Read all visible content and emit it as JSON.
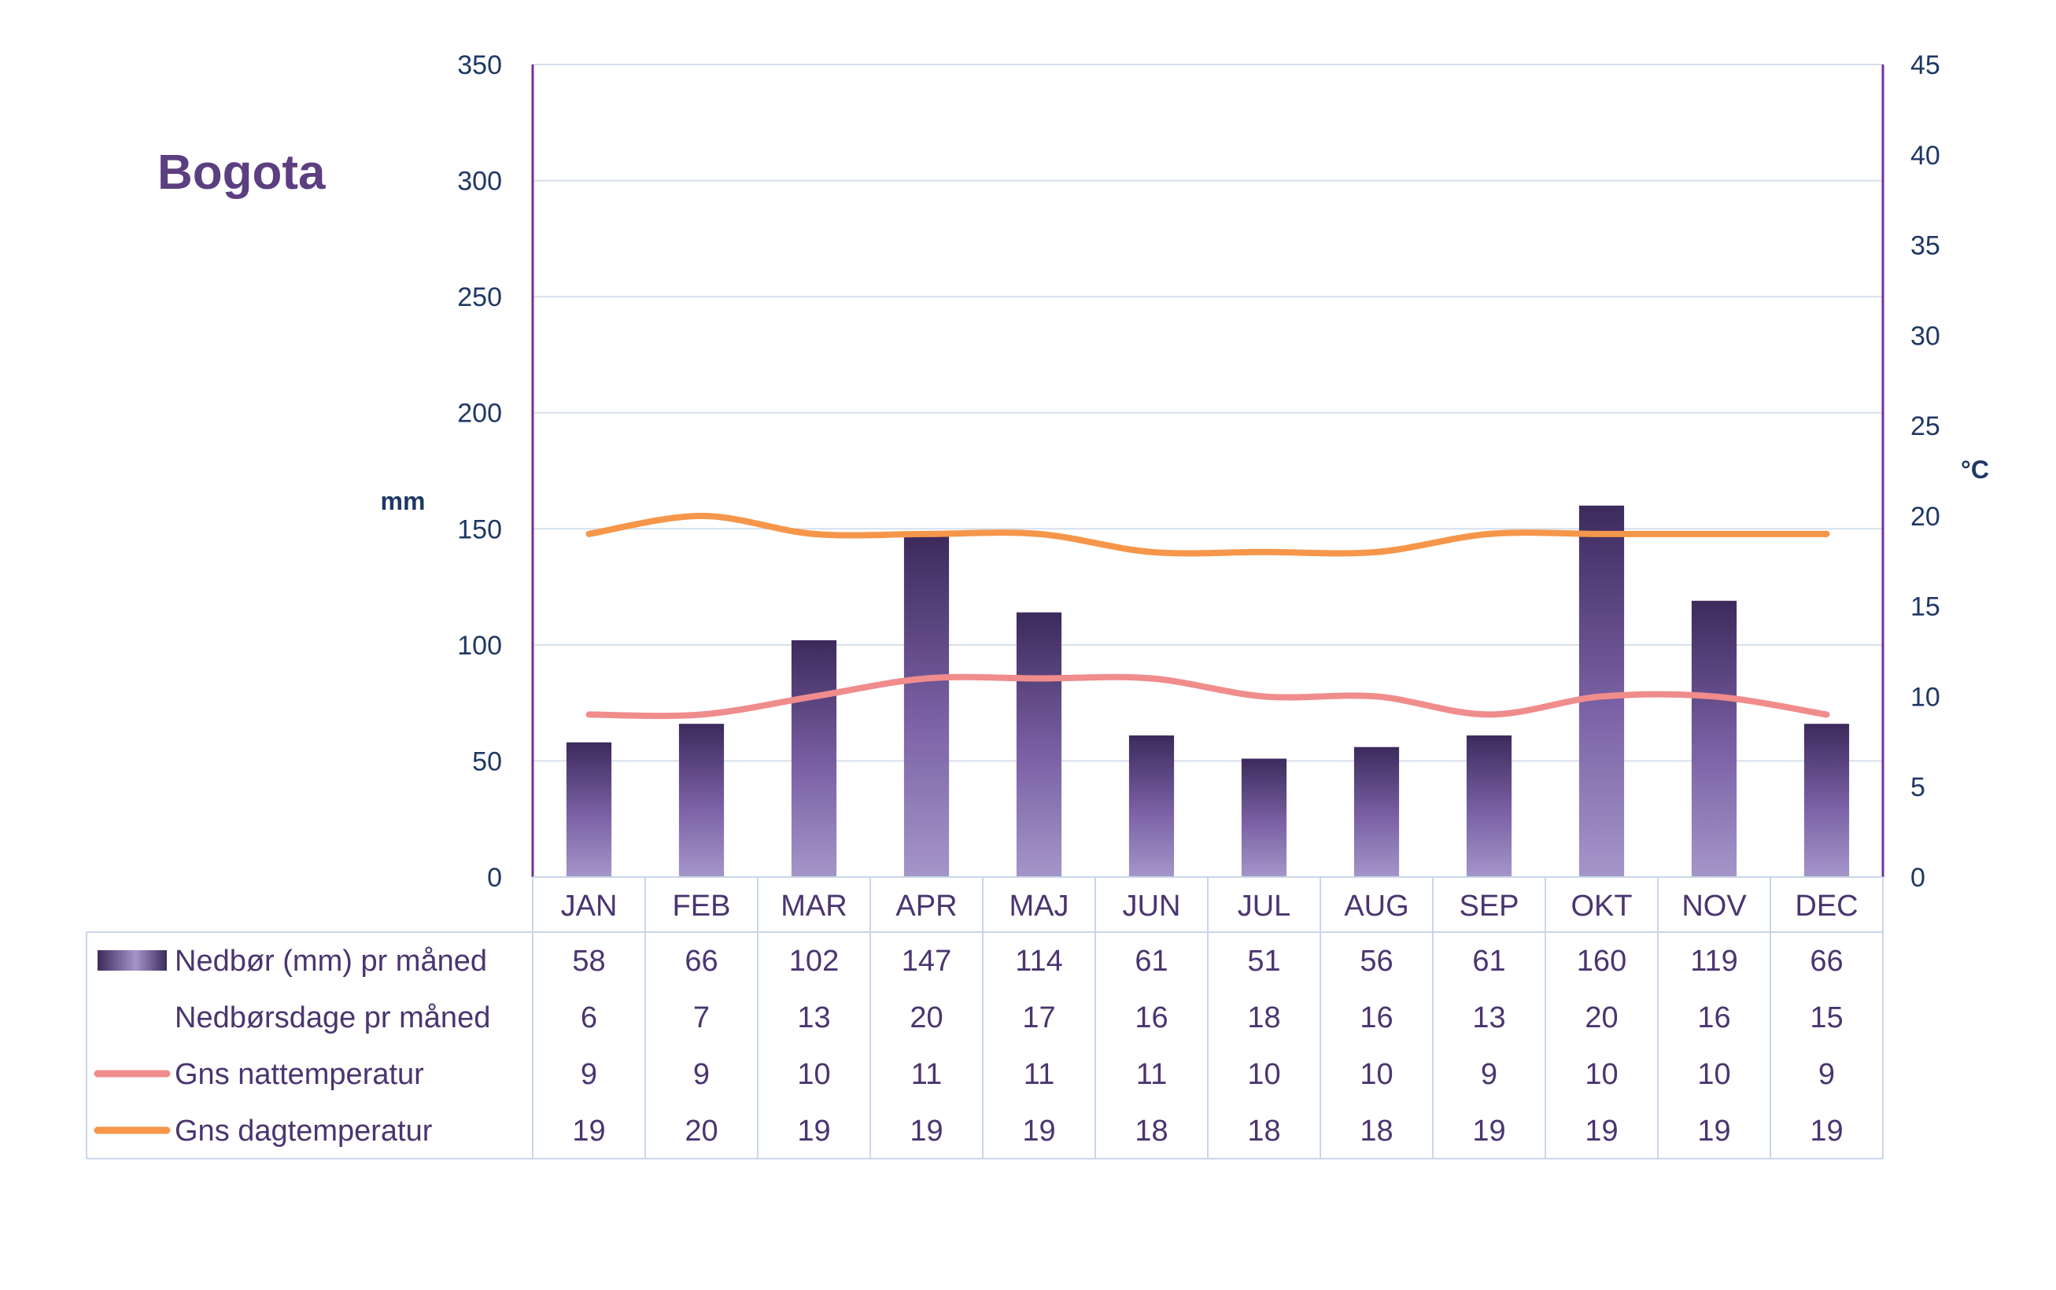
{
  "chart_data": {
    "type": "bar",
    "title": "Bogota",
    "categories": [
      "JAN",
      "FEB",
      "MAR",
      "APR",
      "MAJ",
      "JUN",
      "JUL",
      "AUG",
      "SEP",
      "OKT",
      "NOV",
      "DEC"
    ],
    "y_left": {
      "label": "mm",
      "ylim": [
        0,
        350
      ],
      "ticks": [
        "0",
        "50",
        "100",
        "150",
        "200",
        "250",
        "300",
        "350"
      ]
    },
    "y_right": {
      "label": "°C",
      "ylim": [
        0,
        45
      ],
      "ticks": [
        "0",
        "5",
        "10",
        "15",
        "20",
        "25",
        "30",
        "35",
        "40",
        "45"
      ]
    },
    "grid": true,
    "legend": "data table below chart",
    "series": [
      {
        "name": "Nedbør (mm) pr måned",
        "type": "bar",
        "axis": "left",
        "color": "#5b3f80",
        "values": [
          58,
          66,
          102,
          147,
          114,
          61,
          51,
          56,
          61,
          160,
          119,
          66
        ]
      },
      {
        "name": "Nedbørsdage pr måned",
        "type": "table",
        "axis": "none",
        "values": [
          6,
          7,
          13,
          20,
          17,
          16,
          18,
          16,
          13,
          20,
          16,
          15
        ]
      },
      {
        "name": "Gns nattemperatur",
        "type": "line",
        "axis": "right",
        "color": "#f08c8c",
        "values": [
          9,
          9,
          10,
          11,
          11,
          11,
          10,
          10,
          9,
          10,
          10,
          9
        ]
      },
      {
        "name": "Gns dagtemperatur",
        "type": "line",
        "axis": "right",
        "color": "#f5964a",
        "values": [
          19,
          20,
          19,
          19,
          19,
          18,
          18,
          18,
          19,
          19,
          19,
          19
        ]
      }
    ]
  },
  "colors": {
    "axis": "#7030a0",
    "grid": "#d6dfee",
    "table_border": "#c9d6ea",
    "tick_text": "#1f3864",
    "cell_text": "#4a3570",
    "bar_top": "#3d2a5c",
    "bar_mid": "#7b62a6",
    "bar_bottom": "#a595c8"
  }
}
